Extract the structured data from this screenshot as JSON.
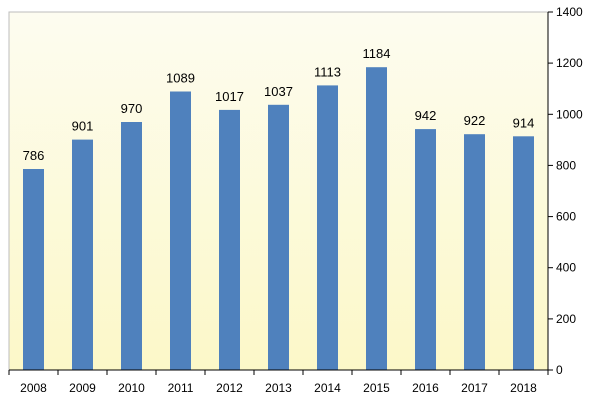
{
  "chart_data": {
    "type": "bar",
    "title": "",
    "xlabel": "",
    "ylabel": "",
    "categories": [
      "2008",
      "2009",
      "2010",
      "2011",
      "2012",
      "2013",
      "2014",
      "2015",
      "2016",
      "2017",
      "2018"
    ],
    "values": [
      786,
      901,
      970,
      1089,
      1017,
      1037,
      1113,
      1184,
      942,
      922,
      914
    ],
    "data_labels": [
      "786",
      "901",
      "970",
      "1089",
      "1017",
      "1037",
      "1113",
      "1184",
      "942",
      "922",
      "914"
    ],
    "ylim": [
      0,
      1400
    ],
    "yticks": [
      0,
      200,
      400,
      600,
      800,
      1000,
      1200,
      1400
    ],
    "ytick_labels": [
      "0",
      "200",
      "400",
      "600",
      "800",
      "1000",
      "1200",
      "1400"
    ],
    "y_axis_position": "right",
    "grid": false,
    "legend": "none",
    "bar_color": "#4f81bd",
    "plot_background_top": "#fdfcf0",
    "plot_background_bottom": "#fcf8c8"
  }
}
